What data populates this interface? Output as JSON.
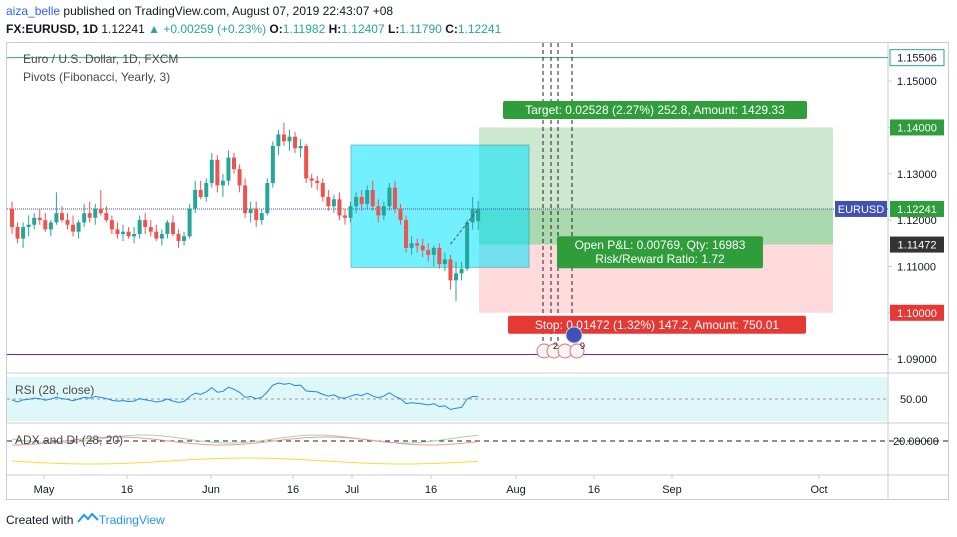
{
  "header": {
    "author": "aiza_belle",
    "published": "published on TradingView.com, August 07, 2019 22:43:07 +08",
    "symbol": "FX:EURUSD, 1D",
    "last": "1.12241",
    "change_arrow": "▲",
    "change": "+0.00259 (+0.23%)",
    "o_label": "O:",
    "o_val": "1.11982",
    "h_label": "H:",
    "h_val": "1.12407",
    "l_label": "L:",
    "l_val": "1.11790",
    "c_label": "C:",
    "c_val": "1.12241"
  },
  "legend": {
    "title": "Euro / U.S. Dollar, 1D, FXCM",
    "pivots": "Pivots (Fibonacci, Yearly, 3)",
    "rsi": "RSI (28, close)",
    "adx": "ADX and DI (28, 20)"
  },
  "position": {
    "target": "Target: 0.02528 (2.27%) 252.8, Amount: 1429.33",
    "open_pl": "Open P&L: 0.00769, Qty: 16983",
    "rr": "Risk/Reward Ratio: 1.72",
    "stop": "Stop: 0.01472 (1.32%) 147.2, Amount: 750.01"
  },
  "price_scale": {
    "ticks": [
      "1.15000",
      "1.14000",
      "1.13000",
      "1.12000",
      "1.11000",
      "1.10000",
      "1.09000"
    ],
    "badges": [
      {
        "text": "1.15506",
        "kind": "outline"
      },
      {
        "text": "1.14000",
        "kind": "green"
      },
      {
        "text": "EURUSD",
        "kind": "blue"
      },
      {
        "text": "1.12241",
        "kind": "green"
      },
      {
        "text": "1.11472",
        "kind": "dark"
      },
      {
        "text": "1.10000",
        "kind": "red"
      }
    ]
  },
  "rsi_scale": [
    "50.00"
  ],
  "adx_scale": [
    "20.00000"
  ],
  "time_axis": [
    "May",
    "16",
    "Jun",
    "16",
    "Jul",
    "16",
    "Aug",
    "16",
    "Sep",
    "Oct"
  ],
  "event_markers": [
    "2",
    "9"
  ],
  "colors": {
    "up": "#26a69a",
    "down": "#ef5350",
    "target_zone": "#a5d6a7",
    "stop_zone": "#ffcdd2",
    "box": "#00e5ff",
    "pivot_top": "#26a69a",
    "pivot_bottom": "#7b1fa2",
    "price_line": "#3f51b5"
  },
  "footer": {
    "created_with": "Created with",
    "brand": "TradingView"
  },
  "chart_data": {
    "type": "candlestick",
    "title": "Euro / U.S. Dollar, 1D, FXCM",
    "x": "daily, 2019-04-23 to 2019-08-07",
    "ylim": [
      1.087,
      1.1565
    ],
    "candles": [
      [
        1.1225,
        1.124,
        1.117,
        1.1185
      ],
      [
        1.1185,
        1.1195,
        1.115,
        1.116
      ],
      [
        1.116,
        1.1195,
        1.114,
        1.1185
      ],
      [
        1.1185,
        1.121,
        1.1165,
        1.119
      ],
      [
        1.119,
        1.1215,
        1.118,
        1.1205
      ],
      [
        1.1205,
        1.1225,
        1.119,
        1.12
      ],
      [
        1.12,
        1.1215,
        1.1175,
        1.118
      ],
      [
        1.118,
        1.12,
        1.1165,
        1.1195
      ],
      [
        1.1195,
        1.126,
        1.119,
        1.1215
      ],
      [
        1.1215,
        1.123,
        1.1195,
        1.12
      ],
      [
        1.12,
        1.1215,
        1.118,
        1.119
      ],
      [
        1.119,
        1.121,
        1.1165,
        1.1175
      ],
      [
        1.1175,
        1.12,
        1.116,
        1.1195
      ],
      [
        1.1195,
        1.1235,
        1.1185,
        1.1215
      ],
      [
        1.1215,
        1.124,
        1.1195,
        1.1205
      ],
      [
        1.1205,
        1.1235,
        1.119,
        1.1225
      ],
      [
        1.1225,
        1.1265,
        1.121,
        1.1215
      ],
      [
        1.1215,
        1.123,
        1.1195,
        1.12
      ],
      [
        1.12,
        1.121,
        1.117,
        1.118
      ],
      [
        1.118,
        1.1195,
        1.116,
        1.117
      ],
      [
        1.117,
        1.119,
        1.1155,
        1.1175
      ],
      [
        1.1175,
        1.1185,
        1.116,
        1.1165
      ],
      [
        1.1165,
        1.1185,
        1.115,
        1.117
      ],
      [
        1.117,
        1.121,
        1.116,
        1.12
      ],
      [
        1.12,
        1.1215,
        1.117,
        1.1185
      ],
      [
        1.1185,
        1.12,
        1.1165,
        1.1175
      ],
      [
        1.1175,
        1.119,
        1.1155,
        1.116
      ],
      [
        1.116,
        1.118,
        1.1145,
        1.117
      ],
      [
        1.117,
        1.12,
        1.116,
        1.1195
      ],
      [
        1.1195,
        1.121,
        1.1165,
        1.117
      ],
      [
        1.117,
        1.118,
        1.114,
        1.1155
      ],
      [
        1.1155,
        1.1175,
        1.1145,
        1.1165
      ],
      [
        1.1165,
        1.1235,
        1.116,
        1.1225
      ],
      [
        1.1225,
        1.1285,
        1.1215,
        1.1265
      ],
      [
        1.1265,
        1.1285,
        1.1245,
        1.125
      ],
      [
        1.125,
        1.129,
        1.124,
        1.128
      ],
      [
        1.128,
        1.1345,
        1.127,
        1.133
      ],
      [
        1.133,
        1.134,
        1.126,
        1.1275
      ],
      [
        1.1275,
        1.13,
        1.125,
        1.1285
      ],
      [
        1.1285,
        1.135,
        1.1275,
        1.1335
      ],
      [
        1.1335,
        1.1345,
        1.13,
        1.131
      ],
      [
        1.131,
        1.132,
        1.126,
        1.1275
      ],
      [
        1.1275,
        1.129,
        1.1205,
        1.1215
      ],
      [
        1.1215,
        1.124,
        1.1195,
        1.1225
      ],
      [
        1.1225,
        1.124,
        1.1185,
        1.12
      ],
      [
        1.12,
        1.1225,
        1.119,
        1.1215
      ],
      [
        1.1215,
        1.129,
        1.121,
        1.128
      ],
      [
        1.128,
        1.137,
        1.127,
        1.136
      ],
      [
        1.136,
        1.1395,
        1.134,
        1.1385
      ],
      [
        1.1385,
        1.141,
        1.136,
        1.137
      ],
      [
        1.137,
        1.1395,
        1.135,
        1.138
      ],
      [
        1.138,
        1.139,
        1.1345,
        1.1355
      ],
      [
        1.1355,
        1.1375,
        1.1335,
        1.136
      ],
      [
        1.136,
        1.1365,
        1.128,
        1.129
      ],
      [
        1.129,
        1.13,
        1.127,
        1.1285
      ],
      [
        1.1285,
        1.1295,
        1.1265,
        1.128
      ],
      [
        1.128,
        1.129,
        1.124,
        1.125
      ],
      [
        1.125,
        1.1265,
        1.122,
        1.123
      ],
      [
        1.123,
        1.1255,
        1.1215,
        1.1245
      ],
      [
        1.1245,
        1.126,
        1.12,
        1.121
      ],
      [
        1.121,
        1.1225,
        1.119,
        1.1205
      ],
      [
        1.1205,
        1.124,
        1.1195,
        1.123
      ],
      [
        1.123,
        1.126,
        1.1215,
        1.125
      ],
      [
        1.125,
        1.1265,
        1.122,
        1.1235
      ],
      [
        1.1235,
        1.1275,
        1.1225,
        1.1265
      ],
      [
        1.1265,
        1.1285,
        1.122,
        1.123
      ],
      [
        1.123,
        1.1245,
        1.1195,
        1.121
      ],
      [
        1.121,
        1.124,
        1.12,
        1.123
      ],
      [
        1.123,
        1.128,
        1.122,
        1.127
      ],
      [
        1.127,
        1.1285,
        1.1215,
        1.1225
      ],
      [
        1.1225,
        1.1235,
        1.119,
        1.12
      ],
      [
        1.12,
        1.121,
        1.113,
        1.114
      ],
      [
        1.114,
        1.1165,
        1.1125,
        1.115
      ],
      [
        1.115,
        1.116,
        1.113,
        1.1145
      ],
      [
        1.1145,
        1.116,
        1.112,
        1.1135
      ],
      [
        1.1135,
        1.115,
        1.111,
        1.1125
      ],
      [
        1.1125,
        1.1145,
        1.11,
        1.114
      ],
      [
        1.114,
        1.115,
        1.1095,
        1.1105
      ],
      [
        1.1105,
        1.113,
        1.109,
        1.1115
      ],
      [
        1.1115,
        1.1125,
        1.105,
        1.107
      ],
      [
        1.107,
        1.111,
        1.1025,
        1.1085
      ],
      [
        1.1085,
        1.111,
        1.107,
        1.1095
      ],
      [
        1.1095,
        1.12,
        1.109,
        1.1195
      ],
      [
        1.1195,
        1.125,
        1.118,
        1.1225
      ],
      [
        1.1198,
        1.1241,
        1.1179,
        1.1224
      ]
    ],
    "levels": [
      {
        "label": "Pivot (Fibonacci, yearly)",
        "y": 1.15506
      },
      {
        "label": "Target",
        "y": 1.14
      },
      {
        "label": "Last price",
        "y": 1.12241
      },
      {
        "label": "Entry",
        "y": 1.11472
      },
      {
        "label": "Stop",
        "y": 1.1
      },
      {
        "label": "Pivot (Fibonacci, yearly)",
        "y": 1.091
      }
    ],
    "rsi_level": 50,
    "adx_level": 20
  }
}
